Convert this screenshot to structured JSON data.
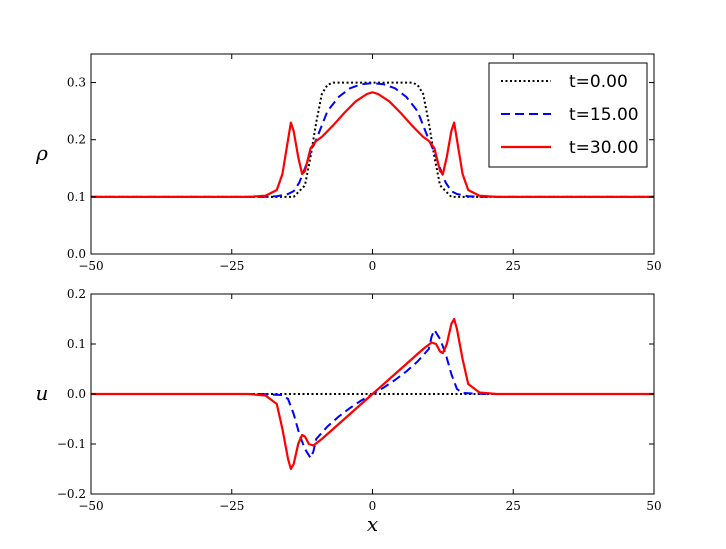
{
  "chart_data": [
    {
      "type": "line",
      "ylabel": "ρ",
      "xlabel": "",
      "xlim": [
        -50,
        50
      ],
      "ylim": [
        0.0,
        0.35
      ],
      "xticks": [
        -50,
        -25,
        0,
        25,
        50
      ],
      "xtick_labels": [
        "−50",
        "−25",
        "0",
        "25",
        "50"
      ],
      "yticks": [
        0.0,
        0.1,
        0.2,
        0.3
      ],
      "ytick_labels": [
        "0.0",
        "0.1",
        "0.2",
        "0.3"
      ],
      "grid": false,
      "legend_position": "top-right",
      "series": [
        {
          "name": "t=0.00",
          "color": "#000000",
          "style": "dotted",
          "points": [
            [
              -50,
              0.1
            ],
            [
              -17,
              0.1
            ],
            [
              -14,
              0.1
            ],
            [
              -12,
              0.12
            ],
            [
              -11,
              0.17
            ],
            [
              -10,
              0.23
            ],
            [
              -9,
              0.28
            ],
            [
              -8,
              0.296
            ],
            [
              -7,
              0.3
            ],
            [
              0,
              0.3
            ],
            [
              7,
              0.3
            ],
            [
              8,
              0.296
            ],
            [
              9,
              0.28
            ],
            [
              10,
              0.23
            ],
            [
              11,
              0.17
            ],
            [
              12,
              0.12
            ],
            [
              14,
              0.1
            ],
            [
              17,
              0.1
            ],
            [
              50,
              0.1
            ]
          ]
        },
        {
          "name": "t=15.00",
          "color": "#0000ff",
          "style": "dashed",
          "points": [
            [
              -50,
              0.1
            ],
            [
              -20,
              0.1
            ],
            [
              -17,
              0.101
            ],
            [
              -15,
              0.105
            ],
            [
              -14,
              0.11
            ],
            [
              -13,
              0.125
            ],
            [
              -12,
              0.15
            ],
            [
              -11,
              0.178
            ],
            [
              -10,
              0.2
            ],
            [
              -9,
              0.225
            ],
            [
              -8,
              0.25
            ],
            [
              -6,
              0.275
            ],
            [
              -4,
              0.29
            ],
            [
              -2,
              0.297
            ],
            [
              0,
              0.299
            ],
            [
              2,
              0.297
            ],
            [
              4,
              0.29
            ],
            [
              6,
              0.275
            ],
            [
              8,
              0.25
            ],
            [
              9,
              0.225
            ],
            [
              10,
              0.2
            ],
            [
              11,
              0.178
            ],
            [
              12,
              0.15
            ],
            [
              13,
              0.125
            ],
            [
              14,
              0.11
            ],
            [
              15,
              0.105
            ],
            [
              17,
              0.101
            ],
            [
              20,
              0.1
            ],
            [
              50,
              0.1
            ]
          ]
        },
        {
          "name": "t=30.00",
          "color": "#ff0000",
          "style": "solid",
          "points": [
            [
              -50,
              0.1
            ],
            [
              -22,
              0.1
            ],
            [
              -19,
              0.102
            ],
            [
              -17,
              0.112
            ],
            [
              -16,
              0.14
            ],
            [
              -15,
              0.2
            ],
            [
              -14.5,
              0.23
            ],
            [
              -14,
              0.215
            ],
            [
              -13.2,
              0.17
            ],
            [
              -12.5,
              0.14
            ],
            [
              -12,
              0.145
            ],
            [
              -11.5,
              0.165
            ],
            [
              -11,
              0.185
            ],
            [
              -10,
              0.198
            ],
            [
              -9,
              0.205
            ],
            [
              -7,
              0.225
            ],
            [
              -5,
              0.247
            ],
            [
              -3,
              0.267
            ],
            [
              -1,
              0.28
            ],
            [
              0,
              0.283
            ],
            [
              1,
              0.28
            ],
            [
              3,
              0.267
            ],
            [
              5,
              0.247
            ],
            [
              7,
              0.225
            ],
            [
              9,
              0.205
            ],
            [
              10,
              0.198
            ],
            [
              11,
              0.185
            ],
            [
              11.5,
              0.165
            ],
            [
              12,
              0.145
            ],
            [
              12.5,
              0.14
            ],
            [
              13.2,
              0.17
            ],
            [
              14,
              0.215
            ],
            [
              14.5,
              0.23
            ],
            [
              15,
              0.2
            ],
            [
              16,
              0.14
            ],
            [
              17,
              0.112
            ],
            [
              19,
              0.102
            ],
            [
              22,
              0.1
            ],
            [
              50,
              0.1
            ]
          ]
        }
      ]
    },
    {
      "type": "line",
      "ylabel": "u",
      "xlabel": "x",
      "xlim": [
        -50,
        50
      ],
      "ylim": [
        -0.2,
        0.2
      ],
      "xticks": [
        -50,
        -25,
        0,
        25,
        50
      ],
      "xtick_labels": [
        "−50",
        "−25",
        "0",
        "25",
        "50"
      ],
      "yticks": [
        -0.2,
        -0.1,
        0.0,
        0.1,
        0.2
      ],
      "ytick_labels": [
        "−0.2",
        "−0.1",
        "0.0",
        "0.1",
        "0.2"
      ],
      "grid": false,
      "series": [
        {
          "name": "t=0.00",
          "color": "#000000",
          "style": "dotted",
          "points": [
            [
              -50,
              0.0
            ],
            [
              50,
              0.0
            ]
          ]
        },
        {
          "name": "t=15.00",
          "color": "#0000ff",
          "style": "dashed",
          "points": [
            [
              -50,
              0.0
            ],
            [
              -20,
              0.0
            ],
            [
              -16,
              -0.002
            ],
            [
              -15,
              -0.01
            ],
            [
              -14,
              -0.04
            ],
            [
              -13,
              -0.08
            ],
            [
              -12,
              -0.11
            ],
            [
              -11,
              -0.128
            ],
            [
              -10.5,
              -0.115
            ],
            [
              -10,
              -0.09
            ],
            [
              -8,
              -0.065
            ],
            [
              -6,
              -0.045
            ],
            [
              -4,
              -0.028
            ],
            [
              -2,
              -0.013
            ],
            [
              0,
              0.0
            ],
            [
              2,
              0.013
            ],
            [
              4,
              0.028
            ],
            [
              6,
              0.045
            ],
            [
              8,
              0.065
            ],
            [
              10,
              0.09
            ],
            [
              10.5,
              0.115
            ],
            [
              11,
              0.128
            ],
            [
              12,
              0.11
            ],
            [
              13,
              0.08
            ],
            [
              14,
              0.04
            ],
            [
              15,
              0.01
            ],
            [
              16,
              0.002
            ],
            [
              20,
              0.0
            ],
            [
              50,
              0.0
            ]
          ]
        },
        {
          "name": "t=30.00",
          "color": "#ff0000",
          "style": "solid",
          "points": [
            [
              -50,
              0.0
            ],
            [
              -22,
              0.0
            ],
            [
              -19,
              -0.003
            ],
            [
              -17,
              -0.02
            ],
            [
              -16,
              -0.07
            ],
            [
              -15,
              -0.13
            ],
            [
              -14.5,
              -0.15
            ],
            [
              -14,
              -0.14
            ],
            [
              -13.2,
              -0.1
            ],
            [
              -12.5,
              -0.082
            ],
            [
              -12,
              -0.085
            ],
            [
              -11.3,
              -0.1
            ],
            [
              -10.5,
              -0.103
            ],
            [
              -9,
              -0.09
            ],
            [
              -6,
              -0.06
            ],
            [
              -3,
              -0.03
            ],
            [
              0,
              0.0
            ],
            [
              3,
              0.03
            ],
            [
              6,
              0.06
            ],
            [
              9,
              0.09
            ],
            [
              10.5,
              0.103
            ],
            [
              11.3,
              0.1
            ],
            [
              12,
              0.085
            ],
            [
              12.5,
              0.082
            ],
            [
              13.2,
              0.1
            ],
            [
              14,
              0.14
            ],
            [
              14.5,
              0.15
            ],
            [
              15,
              0.13
            ],
            [
              16,
              0.07
            ],
            [
              17,
              0.02
            ],
            [
              19,
              0.003
            ],
            [
              22,
              0.0
            ],
            [
              50,
              0.0
            ]
          ]
        }
      ]
    }
  ]
}
